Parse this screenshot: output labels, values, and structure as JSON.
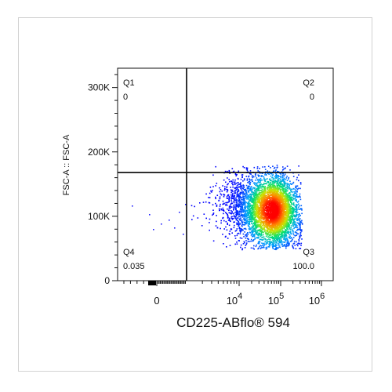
{
  "chart_data": {
    "type": "scatter",
    "subtype": "flow-cytometry-density-dot-plot",
    "xlabel": "CD225-ABflo® 594",
    "ylabel": "FSC-A :: FSC-A",
    "x_scale": "biexponential",
    "y_scale": "linear",
    "ylim": [
      0,
      330000
    ],
    "y_ticks": [
      {
        "value": 0,
        "label": "0"
      },
      {
        "value": 100000,
        "label": "100K"
      },
      {
        "value": 200000,
        "label": "200K"
      },
      {
        "value": 300000,
        "label": "300K"
      }
    ],
    "x_ticks": [
      {
        "value": 0,
        "label": "0",
        "exp": ""
      },
      {
        "value": 10000,
        "label": "10",
        "exp": "4"
      },
      {
        "value": 100000,
        "label": "10",
        "exp": "5"
      },
      {
        "value": 1000000,
        "label": "10",
        "exp": "6"
      }
    ],
    "gate_lines": {
      "x": 1000,
      "y": 168000
    },
    "quadrants": [
      {
        "name": "Q1",
        "value": "0",
        "corner": "top-left"
      },
      {
        "name": "Q2",
        "value": "0",
        "corner": "top-right"
      },
      {
        "name": "Q3",
        "value": "100.0",
        "corner": "bottom-right"
      },
      {
        "name": "Q4",
        "value": "0.035",
        "corner": "bottom-left"
      }
    ],
    "population": {
      "x_center": 60000,
      "y_center": 110000,
      "approx_events": 5000,
      "colormap": [
        "#0000ff",
        "#00a0ff",
        "#00e070",
        "#c8e600",
        "#ff8800",
        "#ff0000"
      ]
    },
    "grid": false,
    "legend": "none"
  }
}
